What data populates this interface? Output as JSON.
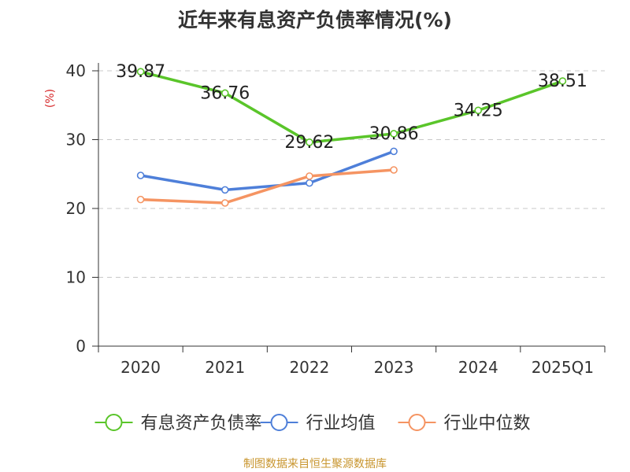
{
  "title": "近年来有息资产负债率情况(%)",
  "source": "制图数据来自恒生聚源数据库",
  "chart_data": {
    "type": "line",
    "title": "近年来有息资产负债率情况(%)",
    "ylabel": "(%)",
    "xlabel": "",
    "categories": [
      "2020",
      "2021",
      "2022",
      "2023",
      "2024",
      "2025Q1"
    ],
    "ylim": [
      0,
      40
    ],
    "yticks": [
      0,
      10,
      20,
      30,
      40
    ],
    "grid": true,
    "legend_position": "bottom",
    "series": [
      {
        "name": "有息资产负债率",
        "color": "#5ac52a",
        "values": [
          39.87,
          36.76,
          29.62,
          30.86,
          34.25,
          38.51
        ],
        "labels": [
          "39.87",
          "36.76",
          "29.62",
          "30.86",
          "34.25",
          "38.51"
        ]
      },
      {
        "name": "行业均值",
        "color": "#4e7fd9",
        "values": [
          24.8,
          22.7,
          23.7,
          28.3,
          null,
          null
        ]
      },
      {
        "name": "行业中位数",
        "color": "#f59462",
        "values": [
          21.3,
          20.8,
          24.7,
          25.6,
          null,
          null
        ]
      }
    ]
  }
}
